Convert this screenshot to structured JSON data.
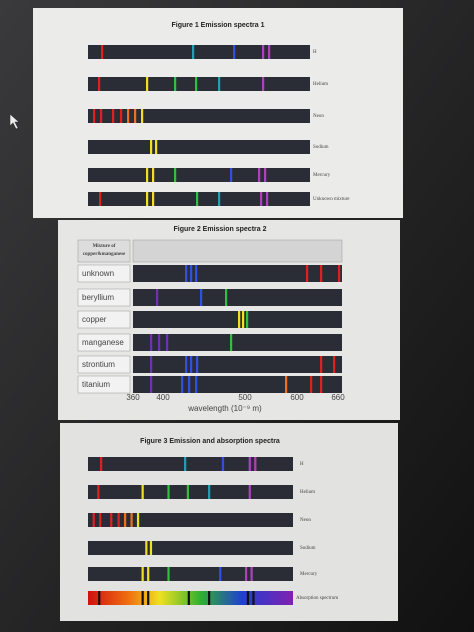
{
  "figure1": {
    "title": "Figure 1 Emission spectra 1",
    "rows": [
      "H",
      "Helium",
      "Neon",
      "Sodium",
      "Mercury",
      "Unknown mixture"
    ]
  },
  "figure2": {
    "title": "Figure 2 Emission spectra 2",
    "header": [
      "Mixture of",
      "copper&manganese"
    ],
    "rows": [
      "unknown",
      "beryllium",
      "copper",
      "manganese",
      "strontium",
      "titanium"
    ],
    "axis": {
      "ticks": [
        "360",
        "400",
        "500",
        "600",
        "660"
      ],
      "label": "wavelength (10⁻⁹ m)"
    }
  },
  "figure3": {
    "title": "Figure 3 Emission and absorption spectra",
    "rows": [
      "H",
      "Helium",
      "Neon",
      "Sodium",
      "Mercury",
      "Absorption spectrum"
    ]
  }
}
